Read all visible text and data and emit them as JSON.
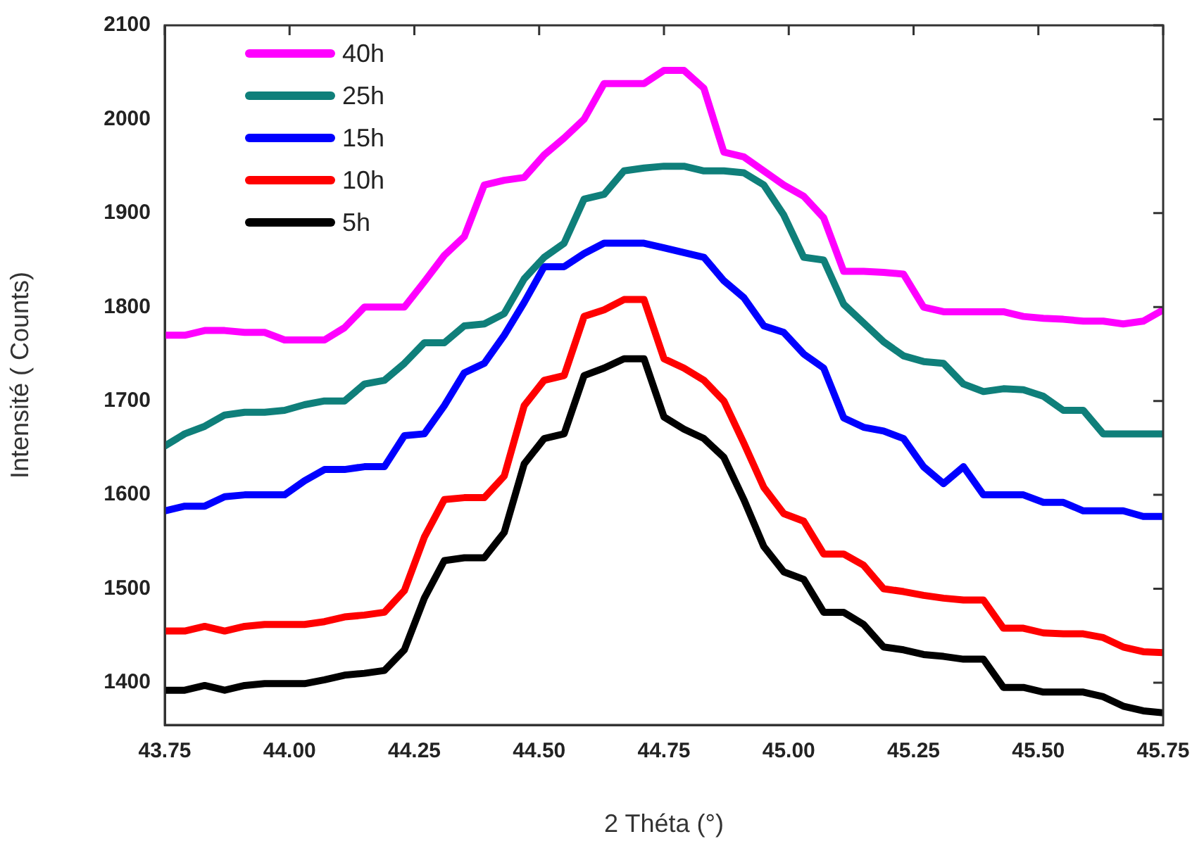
{
  "chart_data": {
    "type": "line",
    "xlabel": "2 Théta (°)",
    "ylabel": "Intensité ( Counts)",
    "x": [
      43.75,
      43.79,
      43.83,
      43.87,
      43.91,
      43.95,
      43.99,
      44.03,
      44.07,
      44.11,
      44.15,
      44.19,
      44.23,
      44.27,
      44.31,
      44.35,
      44.39,
      44.43,
      44.47,
      44.51,
      44.55,
      44.59,
      44.63,
      44.67,
      44.71,
      44.75,
      44.79,
      44.83,
      44.87,
      44.91,
      44.95,
      44.99,
      45.03,
      45.07,
      45.11,
      45.15,
      45.19,
      45.23,
      45.27,
      45.31,
      45.35,
      45.39,
      45.43,
      45.47,
      45.51,
      45.55,
      45.59,
      45.63,
      45.67,
      45.71,
      45.75
    ],
    "xlim": [
      43.75,
      45.75
    ],
    "xticks": [
      43.75,
      {
        "value": 44,
        "label": "44.00"
      },
      44.25,
      {
        "value": 44.5,
        "label": "44.50"
      },
      44.75,
      {
        "value": 45,
        "label": "45.00"
      },
      45.25,
      {
        "value": 45.5,
        "label": "45.50"
      },
      45.75
    ],
    "ylim": [
      1355,
      2100
    ],
    "yticks": [
      1400,
      1500,
      1600,
      1700,
      1800,
      1900,
      2000,
      2100
    ],
    "grid": false,
    "legend": "top left",
    "marker": "none",
    "line_style": "solid",
    "series": [
      {
        "name": "40h",
        "color": "#ff00ff",
        "values": [
          1770,
          1770,
          1775,
          1775,
          1773,
          1773,
          1765,
          1765,
          1765,
          1778,
          1800,
          1800,
          1800,
          1827,
          1855,
          1875,
          1930,
          1935,
          1938,
          1962,
          1980,
          2000,
          2038,
          2038,
          2038,
          2052,
          2052,
          2033,
          1965,
          1960,
          1945,
          1930,
          1918,
          1895,
          1838,
          1838,
          1837,
          1835,
          1800,
          1795,
          1795,
          1795,
          1795,
          1790,
          1788,
          1787,
          1785,
          1785,
          1782,
          1785,
          1797
        ]
      },
      {
        "name": "25h",
        "color": "#0f7f7a",
        "values": [
          1652,
          1665,
          1673,
          1685,
          1688,
          1688,
          1690,
          1696,
          1700,
          1700,
          1718,
          1722,
          1740,
          1762,
          1762,
          1780,
          1782,
          1793,
          1830,
          1853,
          1868,
          1915,
          1920,
          1945,
          1948,
          1950,
          1950,
          1945,
          1945,
          1943,
          1930,
          1898,
          1853,
          1850,
          1803,
          1783,
          1763,
          1748,
          1742,
          1740,
          1718,
          1710,
          1713,
          1712,
          1705,
          1690,
          1690,
          1665,
          1665,
          1665,
          1665
        ]
      },
      {
        "name": "15h",
        "color": "#0000ff",
        "values": [
          1583,
          1588,
          1588,
          1598,
          1600,
          1600,
          1600,
          1615,
          1627,
          1627,
          1630,
          1630,
          1663,
          1665,
          1695,
          1730,
          1740,
          1770,
          1805,
          1843,
          1843,
          1857,
          1868,
          1868,
          1868,
          1863,
          1858,
          1853,
          1828,
          1810,
          1780,
          1773,
          1750,
          1735,
          1682,
          1672,
          1668,
          1660,
          1630,
          1612,
          1630,
          1600,
          1600,
          1600,
          1592,
          1592,
          1583,
          1583,
          1583,
          1577,
          1577
        ]
      },
      {
        "name": "10h",
        "color": "#ff0000",
        "values": [
          1455,
          1455,
          1460,
          1455,
          1460,
          1462,
          1462,
          1462,
          1465,
          1470,
          1472,
          1475,
          1498,
          1555,
          1595,
          1597,
          1597,
          1620,
          1695,
          1722,
          1727,
          1790,
          1797,
          1808,
          1808,
          1745,
          1735,
          1722,
          1700,
          1655,
          1608,
          1580,
          1572,
          1537,
          1537,
          1525,
          1500,
          1497,
          1493,
          1490,
          1488,
          1488,
          1458,
          1458,
          1453,
          1452,
          1452,
          1448,
          1438,
          1433,
          1432
        ]
      },
      {
        "name": "5h",
        "color": "#000000",
        "values": [
          1392,
          1392,
          1397,
          1392,
          1397,
          1399,
          1399,
          1399,
          1403,
          1408,
          1410,
          1413,
          1435,
          1490,
          1530,
          1533,
          1533,
          1560,
          1633,
          1660,
          1665,
          1727,
          1735,
          1745,
          1745,
          1683,
          1670,
          1660,
          1640,
          1595,
          1545,
          1518,
          1510,
          1475,
          1475,
          1462,
          1438,
          1435,
          1430,
          1428,
          1425,
          1425,
          1395,
          1395,
          1390,
          1390,
          1390,
          1385,
          1375,
          1370,
          1368
        ]
      }
    ]
  }
}
